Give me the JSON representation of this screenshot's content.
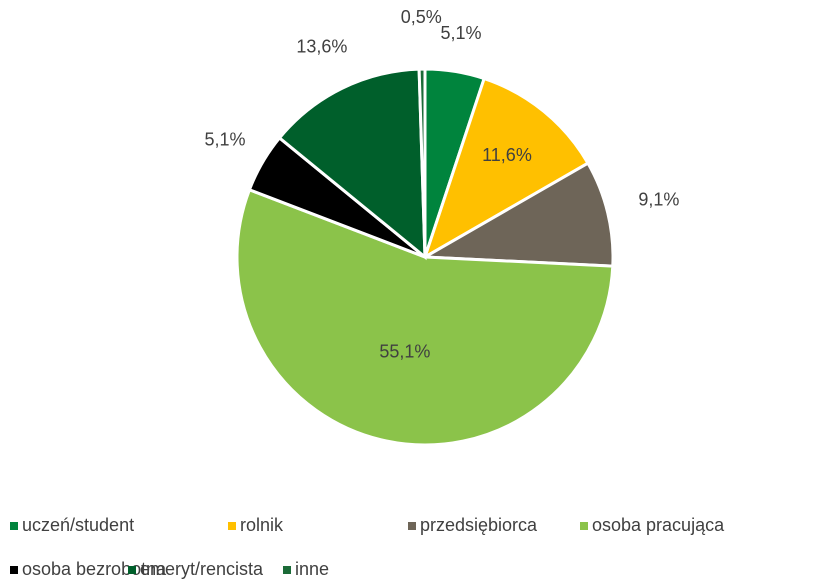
{
  "chart_data": {
    "type": "pie",
    "categories": [
      "uczeń/student",
      "rolnik",
      "przedsiębiorca",
      "osoba pracująca",
      "osoba bezrobotna",
      "emeryt/rencista",
      "inne"
    ],
    "values": [
      5.1,
      11.6,
      9.1,
      55.1,
      5.1,
      13.6,
      0.5
    ],
    "value_labels": [
      "5,1%",
      "11,6%",
      "9,1%",
      "55,1%",
      "5,1%",
      "13,6%",
      "0,5%"
    ],
    "colors": [
      "#00843d",
      "#ffc000",
      "#6e6558",
      "#8bc34a",
      "#000000",
      "#005f2b",
      "#1b6b38"
    ],
    "legend": "bottom"
  }
}
